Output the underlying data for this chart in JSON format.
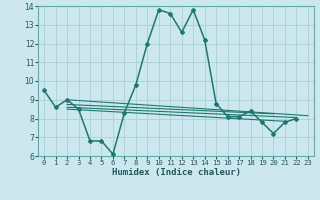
{
  "xlabel": "Humidex (Indice chaleur)",
  "background_color": "#cce8ec",
  "grid_color": "#add4d8",
  "line_color": "#1a7a72",
  "xlim": [
    -0.5,
    23.5
  ],
  "ylim": [
    6,
    14
  ],
  "xticks": [
    0,
    1,
    2,
    3,
    4,
    5,
    6,
    7,
    8,
    9,
    10,
    11,
    12,
    13,
    14,
    15,
    16,
    17,
    18,
    19,
    20,
    21,
    22,
    23
  ],
  "yticks": [
    6,
    7,
    8,
    9,
    10,
    11,
    12,
    13,
    14
  ],
  "main_line": {
    "x": [
      0,
      1,
      2,
      3,
      4,
      5,
      6,
      7,
      8,
      9,
      10,
      11,
      12,
      13,
      14,
      15,
      16,
      17,
      18,
      19,
      20,
      21,
      22
    ],
    "y": [
      9.5,
      8.6,
      9.0,
      8.5,
      6.8,
      6.8,
      6.1,
      8.3,
      9.8,
      12.0,
      13.8,
      13.6,
      12.6,
      13.8,
      12.2,
      8.8,
      8.1,
      8.1,
      8.4,
      7.8,
      7.2,
      7.8,
      8.0
    ]
  },
  "flat_lines": [
    {
      "x": [
        2,
        23
      ],
      "y": [
        9.0,
        8.15
      ]
    },
    {
      "x": [
        2,
        20
      ],
      "y": [
        8.75,
        8.25
      ]
    },
    {
      "x": [
        2,
        22
      ],
      "y": [
        8.6,
        8.05
      ]
    },
    {
      "x": [
        2,
        21
      ],
      "y": [
        8.5,
        7.85
      ]
    }
  ]
}
